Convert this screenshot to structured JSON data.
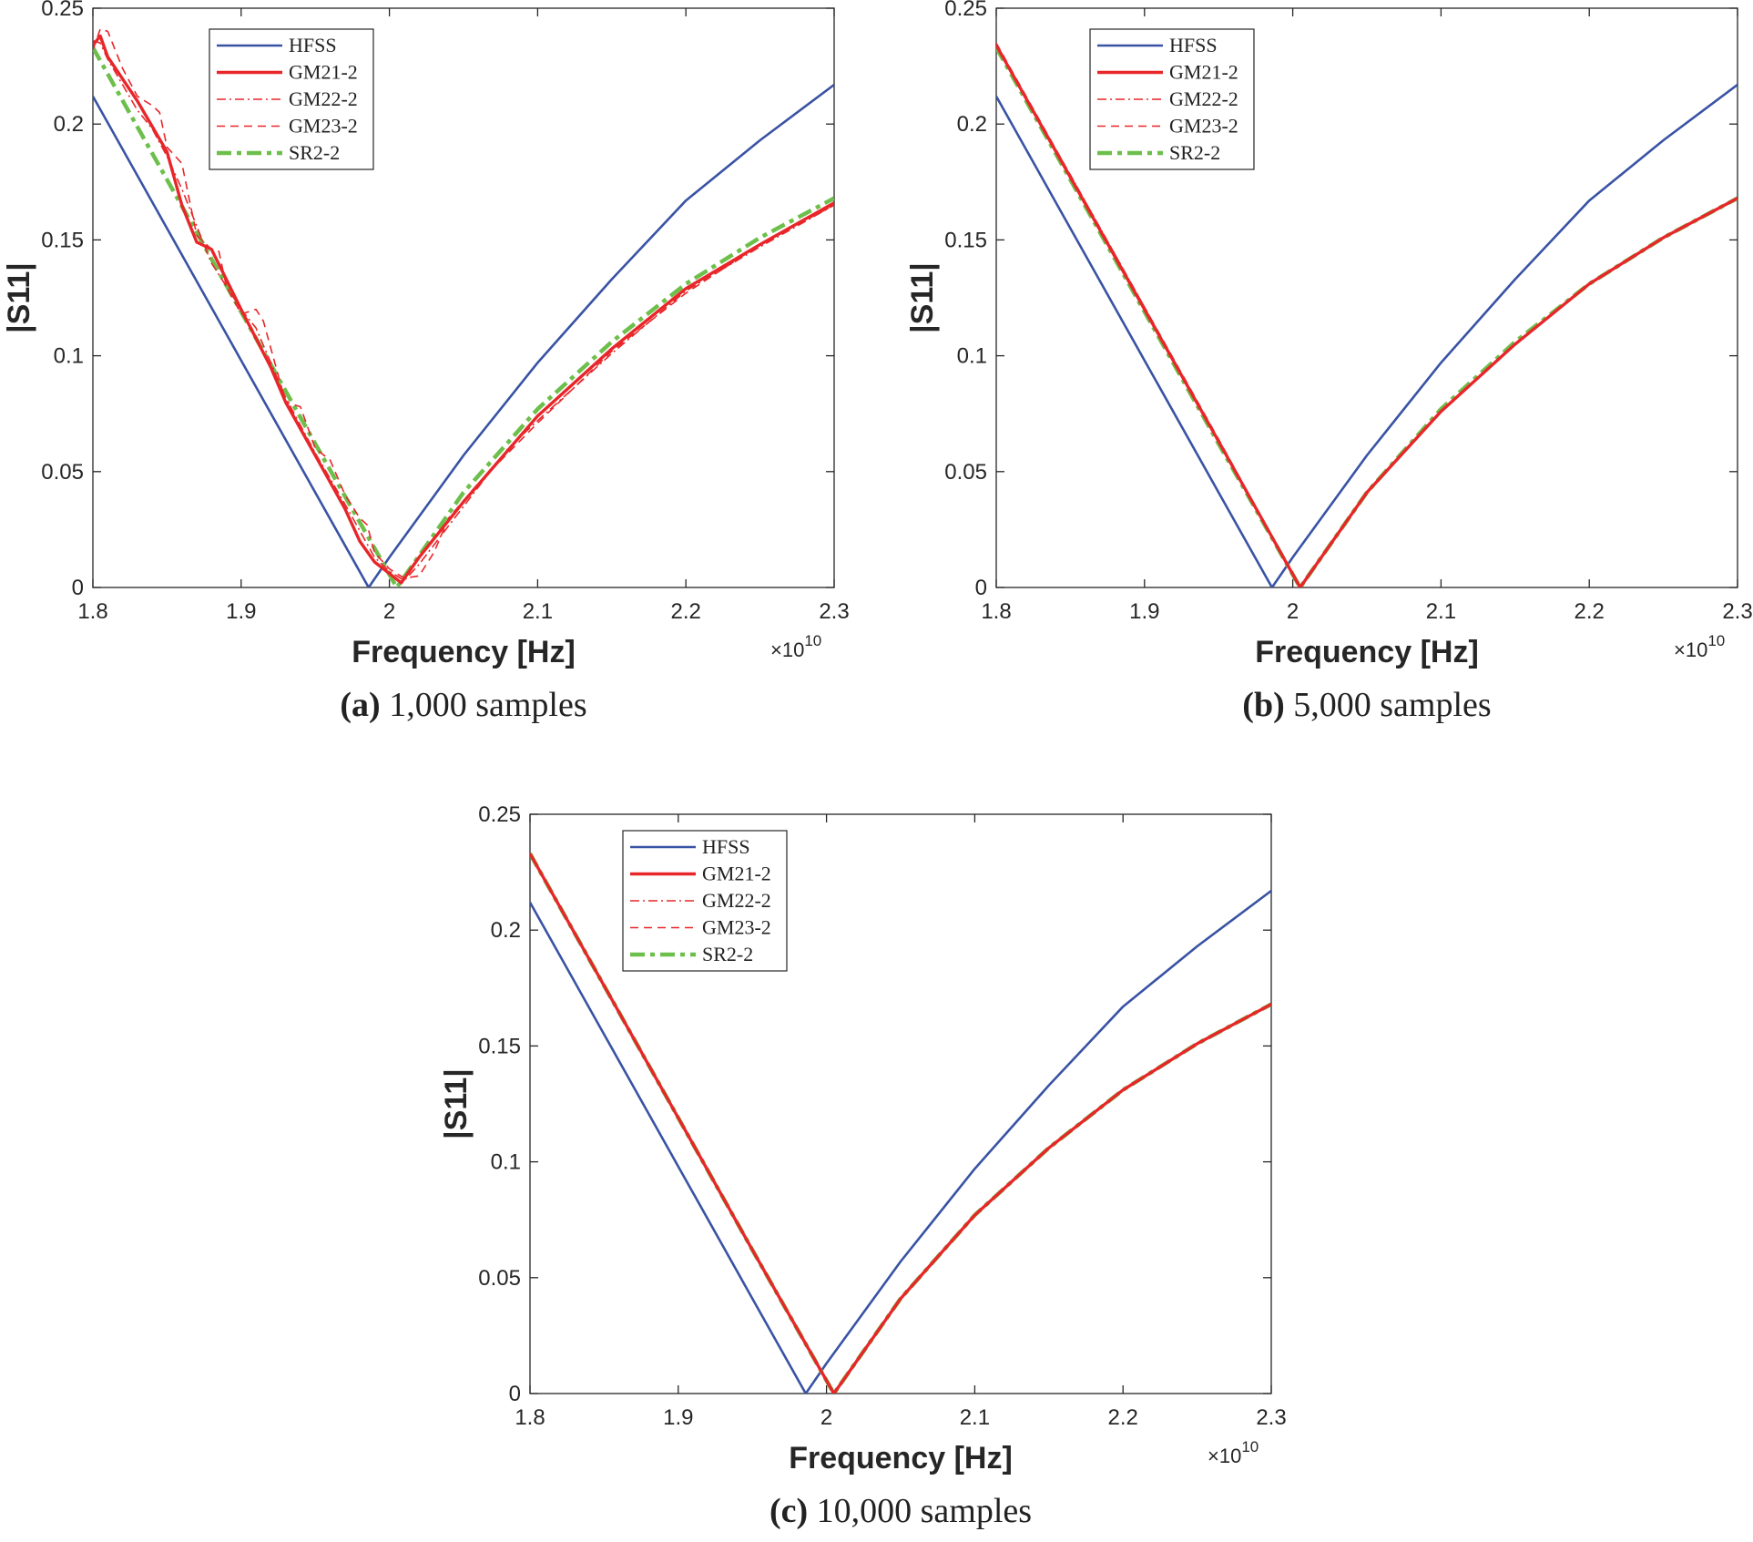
{
  "styles": {
    "HFSS": {
      "color": "#3953a4",
      "dash": "solid",
      "width": 2.6
    },
    "GM21-2": {
      "color": "#e8262a",
      "dash": "solid",
      "width": 3.4
    },
    "GM22-2": {
      "color": "#e8262a",
      "dash": "dashdot",
      "width": 1.6
    },
    "GM23-2": {
      "color": "#e8262a",
      "dash": "dashed",
      "width": 1.6
    },
    "SR2-2": {
      "color": "#6dbf4b",
      "dash": "dashdot-thick",
      "width": 4.5
    }
  },
  "chart_data": [
    {
      "type": "line",
      "caption_label": "(a)",
      "caption_text": "1,000 samples",
      "xlabel": "Frequency [Hz]",
      "ylabel": "|S11|",
      "x_multiplier": "×10",
      "x_multiplier_exp": "10",
      "xlim": [
        1.8,
        2.3
      ],
      "ylim": [
        0,
        0.25
      ],
      "xticks": [
        "1.8",
        "1.9",
        "2",
        "2.1",
        "2.2",
        "2.3"
      ],
      "yticks": [
        "0",
        "0.05",
        "0.1",
        "0.15",
        "0.2",
        "0.25"
      ],
      "legend_position": "top-left",
      "grid": false,
      "series": [
        {
          "name": "HFSS",
          "x": [
            1.8,
            1.85,
            1.9,
            1.95,
            1.986,
            2.0,
            2.05,
            2.1,
            2.15,
            2.2,
            2.25,
            2.3
          ],
          "y": [
            0.212,
            0.155,
            0.098,
            0.041,
            0,
            0.013,
            0.057,
            0.097,
            0.133,
            0.167,
            0.193,
            0.217
          ]
        },
        {
          "name": "GM21-2",
          "x": [
            1.8,
            1.805,
            1.81,
            1.83,
            1.85,
            1.86,
            1.87,
            1.88,
            1.9,
            1.92,
            1.93,
            1.95,
            1.97,
            1.98,
            1.99,
            2.0,
            2.008,
            2.02,
            2.05,
            2.1,
            2.15,
            2.2,
            2.25,
            2.3
          ],
          "y": [
            0.234,
            0.238,
            0.229,
            0.21,
            0.188,
            0.165,
            0.149,
            0.146,
            0.12,
            0.095,
            0.08,
            0.057,
            0.034,
            0.02,
            0.011,
            0.006,
            0.002,
            0.013,
            0.037,
            0.074,
            0.103,
            0.129,
            0.148,
            0.166
          ]
        },
        {
          "name": "GM22-2",
          "x": [
            1.8,
            1.805,
            1.81,
            1.83,
            1.84,
            1.85,
            1.86,
            1.88,
            1.9,
            1.91,
            1.93,
            1.95,
            1.97,
            1.99,
            2.0,
            2.01,
            2.02,
            2.05,
            2.08,
            2.1,
            2.15,
            2.2,
            2.25,
            2.3
          ],
          "y": [
            0.236,
            0.235,
            0.228,
            0.206,
            0.198,
            0.186,
            0.172,
            0.14,
            0.12,
            0.112,
            0.082,
            0.058,
            0.036,
            0.013,
            0.007,
            0.003,
            0.01,
            0.035,
            0.06,
            0.072,
            0.101,
            0.128,
            0.147,
            0.165
          ]
        },
        {
          "name": "GM23-2",
          "x": [
            1.8,
            1.805,
            1.81,
            1.82,
            1.83,
            1.84,
            1.845,
            1.85,
            1.86,
            1.87,
            1.88,
            1.885,
            1.89,
            1.9,
            1.91,
            1.915,
            1.93,
            1.94,
            1.95,
            1.96,
            1.97,
            1.98,
            1.985,
            1.99,
            2.0,
            2.01,
            2.02,
            2.03,
            2.04,
            2.06,
            2.1,
            2.15,
            2.2,
            2.25,
            2.3
          ],
          "y": [
            0.232,
            0.241,
            0.24,
            0.224,
            0.212,
            0.208,
            0.205,
            0.19,
            0.183,
            0.152,
            0.146,
            0.145,
            0.13,
            0.118,
            0.12,
            0.115,
            0.08,
            0.078,
            0.06,
            0.055,
            0.04,
            0.03,
            0.027,
            0.015,
            0.008,
            0.004,
            0.005,
            0.015,
            0.03,
            0.045,
            0.071,
            0.102,
            0.127,
            0.148,
            0.165
          ]
        },
        {
          "name": "SR2-2",
          "x": [
            1.8,
            1.85,
            1.9,
            1.95,
            2.005,
            2.05,
            2.1,
            2.15,
            2.2,
            2.25,
            2.3
          ],
          "y": [
            0.233,
            0.176,
            0.119,
            0.062,
            0,
            0.041,
            0.077,
            0.106,
            0.131,
            0.151,
            0.168
          ]
        }
      ]
    },
    {
      "type": "line",
      "caption_label": "(b)",
      "caption_text": "5,000 samples",
      "xlabel": "Frequency [Hz]",
      "ylabel": "|S11|",
      "x_multiplier": "×10",
      "x_multiplier_exp": "10",
      "xlim": [
        1.8,
        2.3
      ],
      "ylim": [
        0,
        0.25
      ],
      "xticks": [
        "1.8",
        "1.9",
        "2",
        "2.1",
        "2.2",
        "2.3"
      ],
      "yticks": [
        "0",
        "0.05",
        "0.1",
        "0.15",
        "0.2",
        "0.25"
      ],
      "legend_position": "top-left",
      "grid": false,
      "series": [
        {
          "name": "HFSS",
          "x": [
            1.8,
            1.85,
            1.9,
            1.95,
            1.986,
            2.0,
            2.05,
            2.1,
            2.15,
            2.2,
            2.25,
            2.3
          ],
          "y": [
            0.212,
            0.155,
            0.098,
            0.041,
            0,
            0.013,
            0.057,
            0.097,
            0.133,
            0.167,
            0.193,
            0.217
          ]
        },
        {
          "name": "GM21-2",
          "x": [
            1.8,
            1.85,
            1.9,
            1.95,
            2.005,
            2.05,
            2.1,
            2.15,
            2.2,
            2.25,
            2.3
          ],
          "y": [
            0.234,
            0.177,
            0.12,
            0.063,
            0,
            0.041,
            0.076,
            0.105,
            0.131,
            0.151,
            0.168
          ]
        },
        {
          "name": "GM22-2",
          "x": [
            1.8,
            1.85,
            1.9,
            1.95,
            2.005,
            2.05,
            2.1,
            2.15,
            2.2,
            2.25,
            2.3
          ],
          "y": [
            0.234,
            0.178,
            0.121,
            0.063,
            0,
            0.041,
            0.076,
            0.105,
            0.131,
            0.151,
            0.168
          ]
        },
        {
          "name": "GM23-2",
          "x": [
            1.8,
            1.85,
            1.9,
            1.95,
            2.005,
            2.05,
            2.1,
            2.15,
            2.2,
            2.25,
            2.3
          ],
          "y": [
            0.235,
            0.178,
            0.121,
            0.064,
            0,
            0.041,
            0.076,
            0.105,
            0.131,
            0.151,
            0.168
          ]
        },
        {
          "name": "SR2-2",
          "x": [
            1.8,
            1.85,
            1.9,
            1.95,
            2.005,
            2.05,
            2.1,
            2.15,
            2.2,
            2.25,
            2.3
          ],
          "y": [
            0.233,
            0.176,
            0.119,
            0.062,
            0,
            0.041,
            0.077,
            0.106,
            0.131,
            0.151,
            0.168
          ]
        }
      ]
    },
    {
      "type": "line",
      "caption_label": "(c)",
      "caption_text": "10,000 samples",
      "xlabel": "Frequency [Hz]",
      "ylabel": "|S11|",
      "x_multiplier": "×10",
      "x_multiplier_exp": "10",
      "xlim": [
        1.8,
        2.3
      ],
      "ylim": [
        0,
        0.25
      ],
      "xticks": [
        "1.8",
        "1.9",
        "2",
        "2.1",
        "2.2",
        "2.3"
      ],
      "yticks": [
        "0",
        "0.05",
        "0.1",
        "0.15",
        "0.2",
        "0.25"
      ],
      "legend_position": "top-left",
      "grid": false,
      "series": [
        {
          "name": "HFSS",
          "x": [
            1.8,
            1.85,
            1.9,
            1.95,
            1.986,
            2.0,
            2.05,
            2.1,
            2.15,
            2.2,
            2.25,
            2.3
          ],
          "y": [
            0.212,
            0.155,
            0.098,
            0.041,
            0,
            0.013,
            0.057,
            0.097,
            0.133,
            0.167,
            0.193,
            0.217
          ]
        },
        {
          "name": "GM21-2",
          "x": [
            1.8,
            1.85,
            1.9,
            1.95,
            2.005,
            2.05,
            2.1,
            2.15,
            2.2,
            2.25,
            2.3
          ],
          "y": [
            0.233,
            0.176,
            0.119,
            0.062,
            0,
            0.041,
            0.077,
            0.106,
            0.131,
            0.151,
            0.168
          ]
        },
        {
          "name": "GM22-2",
          "x": [
            1.8,
            1.85,
            1.9,
            1.95,
            2.005,
            2.05,
            2.1,
            2.15,
            2.2,
            2.25,
            2.3
          ],
          "y": [
            0.233,
            0.176,
            0.119,
            0.062,
            0,
            0.041,
            0.077,
            0.106,
            0.131,
            0.151,
            0.168
          ]
        },
        {
          "name": "GM23-2",
          "x": [
            1.8,
            1.85,
            1.9,
            1.95,
            2.005,
            2.05,
            2.1,
            2.15,
            2.2,
            2.25,
            2.3
          ],
          "y": [
            0.233,
            0.176,
            0.119,
            0.062,
            0,
            0.041,
            0.077,
            0.106,
            0.131,
            0.151,
            0.168
          ]
        },
        {
          "name": "SR2-2",
          "x": [
            1.8,
            1.85,
            1.9,
            1.95,
            2.005,
            2.05,
            2.1,
            2.15,
            2.2,
            2.25,
            2.3
          ],
          "y": [
            0.233,
            0.176,
            0.119,
            0.062,
            0,
            0.041,
            0.077,
            0.106,
            0.131,
            0.151,
            0.168
          ]
        }
      ]
    }
  ]
}
